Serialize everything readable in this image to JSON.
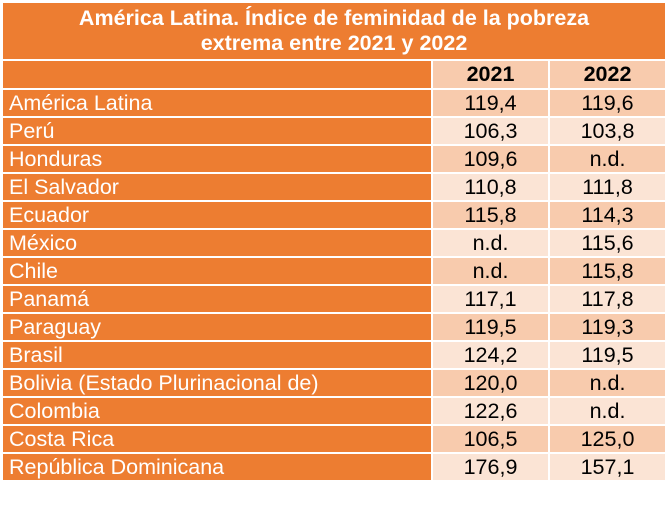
{
  "table": {
    "title_line1": "América Latina. Índice de feminidad de la pobreza",
    "title_line2": "extrema entre 2021 y 2022",
    "columns": [
      "2021",
      "2022"
    ],
    "rows": [
      {
        "name": "América Latina",
        "v2021": "119,4",
        "v2022": "119,6"
      },
      {
        "name": "Perú",
        "v2021": "106,3",
        "v2022": "103,8"
      },
      {
        "name": "Honduras",
        "v2021": "109,6",
        "v2022": "n.d."
      },
      {
        "name": "El Salvador",
        "v2021": "110,8",
        "v2022": "111,8"
      },
      {
        "name": "Ecuador",
        "v2021": "115,8",
        "v2022": "114,3"
      },
      {
        "name": "México",
        "v2021": "n.d.",
        "v2022": "115,6"
      },
      {
        "name": "Chile",
        "v2021": "n.d.",
        "v2022": "115,8"
      },
      {
        "name": "Panamá",
        "v2021": "117,1",
        "v2022": "117,8"
      },
      {
        "name": "Paraguay",
        "v2021": "119,5",
        "v2022": "119,3"
      },
      {
        "name": "Brasil",
        "v2021": "124,2",
        "v2022": "119,5"
      },
      {
        "name": "Bolivia (Estado Plurinacional de)",
        "v2021": "120,0",
        "v2022": "n.d."
      },
      {
        "name": "Colombia",
        "v2021": "122,6",
        "v2022": "n.d."
      },
      {
        "name": "Costa Rica",
        "v2021": "106,5",
        "v2022": "125,0"
      },
      {
        "name": "República Dominicana",
        "v2021": "176,9",
        "v2022": "157,1"
      }
    ]
  },
  "colors": {
    "header_orange": "#ED7D31",
    "value_dark": "#F8CBAD",
    "value_light": "#FBE4D5"
  }
}
